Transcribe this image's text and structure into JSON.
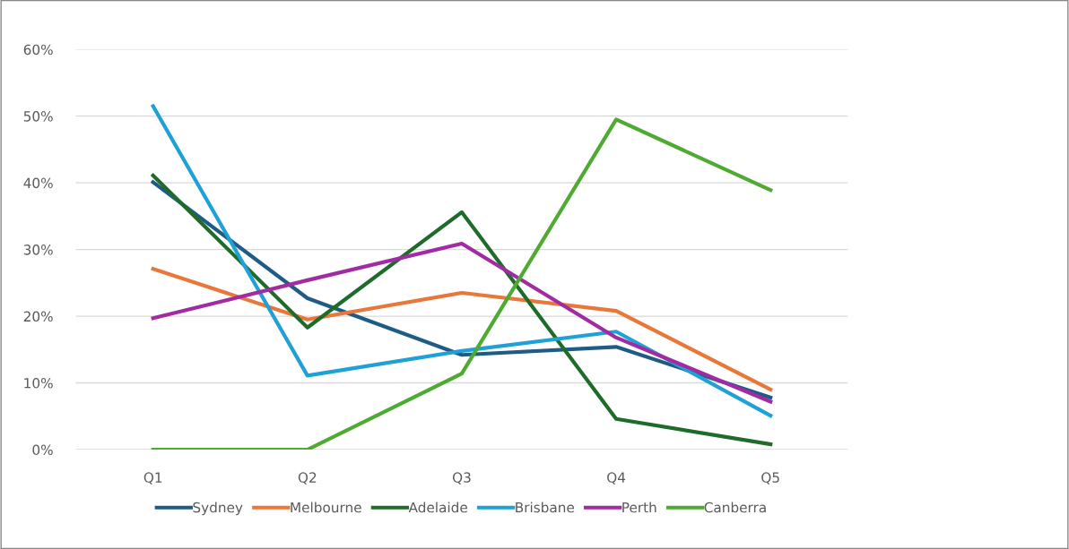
{
  "chart_data": {
    "type": "line",
    "categories": [
      "Q1",
      "Q2",
      "Q3",
      "Q4",
      "Q5"
    ],
    "series": [
      {
        "name": "Sydney",
        "color": "#1f5c85",
        "values": [
          40.1,
          22.7,
          14.2,
          15.4,
          7.8
        ]
      },
      {
        "name": "Melbourne",
        "color": "#e9773a",
        "values": [
          27.1,
          19.5,
          23.5,
          20.8,
          9.0
        ]
      },
      {
        "name": "Adelaide",
        "color": "#1e6b2a",
        "values": [
          41.1,
          18.3,
          35.6,
          4.6,
          0.8
        ]
      },
      {
        "name": "Brisbane",
        "color": "#1fa1d8",
        "values": [
          51.5,
          11.1,
          14.8,
          17.7,
          5.1
        ]
      },
      {
        "name": "Perth",
        "color": "#a02ba3",
        "values": [
          19.7,
          25.4,
          30.9,
          16.8,
          7.2
        ]
      },
      {
        "name": "Canberra",
        "color": "#4faa33",
        "values": [
          0,
          0,
          11.4,
          49.5,
          38.9
        ]
      }
    ],
    "ylim": [
      0,
      60
    ],
    "yticks": [
      {
        "value": 0,
        "label": "0%"
      },
      {
        "value": 10,
        "label": "10%"
      },
      {
        "value": 20,
        "label": "20%"
      },
      {
        "value": 30,
        "label": "30%"
      },
      {
        "value": 40,
        "label": "40%"
      },
      {
        "value": 50,
        "label": "50%"
      },
      {
        "value": 60,
        "label": "60%"
      }
    ],
    "grid": "y",
    "legend": "bottom",
    "marker": "none",
    "line_style": "solid"
  }
}
